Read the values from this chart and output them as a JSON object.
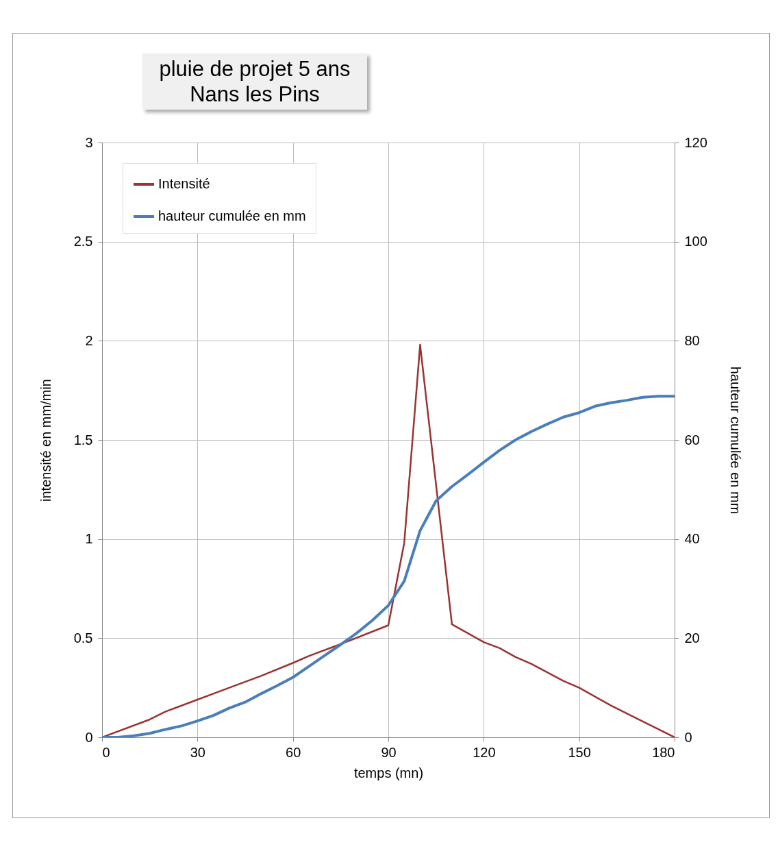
{
  "chart_data": {
    "type": "line",
    "title": "pluie de projet 5 ans",
    "subtitle": "Nans les Pins",
    "xlabel": "temps (mn)",
    "ylabel": "intensité en mm/min",
    "y2label": "hauteur cumulée en mm",
    "xlim": [
      0,
      180
    ],
    "xticks": [
      0,
      30,
      60,
      90,
      120,
      150,
      180
    ],
    "ylim": [
      0,
      3
    ],
    "yticks": [
      0,
      0.5,
      1,
      1.5,
      2,
      2.5,
      3
    ],
    "y2lim": [
      0,
      120
    ],
    "y2ticks": [
      0,
      20,
      40,
      60,
      80,
      100,
      120
    ],
    "grid": true,
    "legend": "top left",
    "line_style": "solid",
    "series": [
      {
        "name": "Intensité",
        "color": "#993333",
        "x": [
          0,
          15,
          20,
          30,
          40,
          50,
          60,
          65,
          75,
          90,
          95,
          100,
          110,
          120,
          125,
          130,
          135,
          145,
          150,
          160,
          170,
          175,
          180
        ],
        "values": [
          0,
          0.09,
          0.13,
          0.19,
          0.25,
          0.31,
          0.375,
          0.41,
          0.47,
          0.565,
          0.98,
          1.98,
          0.57,
          0.48,
          0.45,
          0.405,
          0.37,
          0.285,
          0.25,
          0.16,
          0.08,
          0.04,
          0
        ]
      },
      {
        "name": "hauteur cumulée en mm",
        "color": "#4a7ebb",
        "axis": "y2",
        "x": [
          0,
          5,
          10,
          15,
          20,
          25,
          30,
          35,
          40,
          45,
          50,
          55,
          60,
          65,
          70,
          75,
          80,
          85,
          90,
          95,
          100,
          105,
          110,
          115,
          120,
          125,
          130,
          135,
          140,
          145,
          150,
          155,
          160,
          165,
          170,
          175,
          180
        ],
        "values": [
          0,
          0,
          0.3,
          0.8,
          1.6,
          2.3,
          3.3,
          4.4,
          5.9,
          7.1,
          8.8,
          10.4,
          12.1,
          14.3,
          16.5,
          18.7,
          21.0,
          23.6,
          26.6,
          31.5,
          41.7,
          47.7,
          50.6,
          53.0,
          55.5,
          57.9,
          60.0,
          61.7,
          63.2,
          64.6,
          65.5,
          66.8,
          67.5,
          68.0,
          68.6,
          68.8,
          68.8
        ]
      }
    ]
  }
}
